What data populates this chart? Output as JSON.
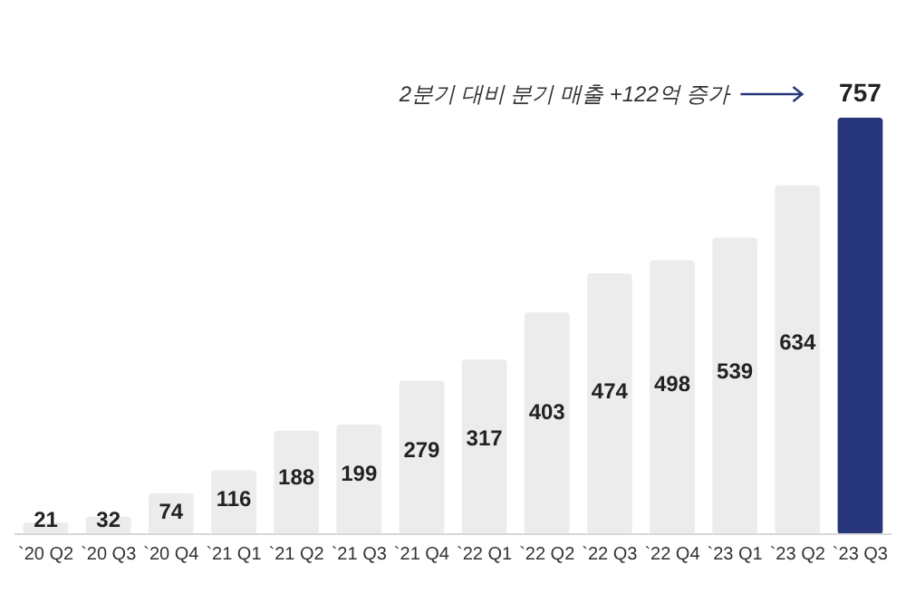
{
  "chart_data": {
    "type": "bar",
    "categories": [
      "`20 Q2",
      "`20 Q3",
      "`20 Q4",
      "`21 Q1",
      "`21 Q2",
      "`21 Q3",
      "`21 Q4",
      "`22 Q1",
      "`22 Q2",
      "`22 Q3",
      "`22 Q4",
      "`23 Q1",
      "`23 Q2",
      "`23 Q3"
    ],
    "values": [
      21,
      32,
      74,
      116,
      188,
      199,
      279,
      317,
      403,
      474,
      498,
      539,
      634,
      757
    ],
    "colors": [
      "#ececec",
      "#ececec",
      "#ececec",
      "#ececec",
      "#ececec",
      "#ececec",
      "#ececec",
      "#ececec",
      "#ececec",
      "#ececec",
      "#ececec",
      "#ececec",
      "#ececec",
      "#27357a"
    ],
    "data_labels": true,
    "annotations": [
      "2분기 대비 분기 매출 +122억 증가"
    ]
  }
}
